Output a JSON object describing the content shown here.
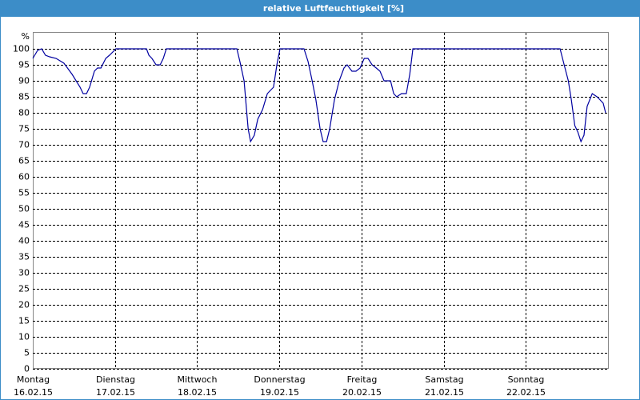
{
  "chart_data": {
    "type": "line",
    "title": "relative Luftfeuchtigkeit [%]",
    "y_unit_label": "%",
    "xlim": [
      0,
      168
    ],
    "ylim": [
      0,
      105
    ],
    "xticks": [
      {
        "value": 0,
        "label": "Montag",
        "date": "16.02.15"
      },
      {
        "value": 24,
        "label": "Dienstag",
        "date": "17.02.15"
      },
      {
        "value": 48,
        "label": "Mittwoch",
        "date": "18.02.15"
      },
      {
        "value": 72,
        "label": "Donnerstag",
        "date": "19.02.15"
      },
      {
        "value": 96,
        "label": "Freitag",
        "date": "20.02.15"
      },
      {
        "value": 120,
        "label": "Samstag",
        "date": "21.02.15"
      },
      {
        "value": 144,
        "label": "Sonntag",
        "date": "22.02.15"
      }
    ],
    "yticks": [
      0,
      5,
      10,
      15,
      20,
      25,
      30,
      35,
      40,
      45,
      50,
      55,
      60,
      65,
      70,
      75,
      80,
      85,
      90,
      95,
      100
    ],
    "grid": true,
    "series": [
      {
        "color": "#0000a0",
        "x": [
          0,
          1.4,
          2.6,
          3.7,
          4.9,
          6.8,
          9.1,
          11.5,
          13.8,
          14.7,
          15.7,
          16.6,
          18,
          18.9,
          19.9,
          21.3,
          22.4,
          24.3,
          33.2,
          33.9,
          34.8,
          36,
          37.2,
          38.1,
          39,
          59.6,
          60.5,
          61.7,
          62.9,
          63.6,
          64.7,
          65.7,
          67.1,
          68.5,
          69.4,
          70.3,
          71.3,
          72.2,
          79.2,
          80.4,
          81.6,
          82.7,
          83.9,
          84.8,
          85.8,
          86.7,
          88.1,
          89.5,
          90.9,
          91.8,
          93.2,
          94.4,
          95.6,
          96.8,
          97.9,
          99.1,
          100.3,
          101.4,
          102.6,
          104.5,
          105.4,
          106.3,
          107.7,
          109.1,
          110.1,
          111,
          154,
          155.2,
          156.4,
          157.3,
          158.3,
          159.2,
          160.1,
          161,
          161.9,
          163.4,
          164.8,
          165.7,
          166.6,
          167.3
        ],
        "values": [
          97,
          99.5,
          100,
          98,
          97.5,
          97,
          95.5,
          92,
          88,
          86,
          86,
          88,
          93,
          94,
          94,
          97,
          98,
          100,
          100,
          98,
          97,
          95,
          95,
          97,
          100,
          100,
          96,
          90,
          75,
          71,
          73,
          78,
          81,
          86,
          87,
          88,
          95,
          100,
          100,
          96,
          90,
          84,
          75,
          71,
          71,
          75,
          84,
          90,
          94,
          95,
          93,
          93,
          94,
          97,
          97,
          95,
          94,
          93,
          90,
          90,
          86,
          85,
          86,
          86,
          92,
          100,
          100,
          95,
          90,
          84,
          76,
          74,
          71,
          73,
          82,
          86,
          85,
          84,
          83,
          80
        ]
      }
    ]
  }
}
